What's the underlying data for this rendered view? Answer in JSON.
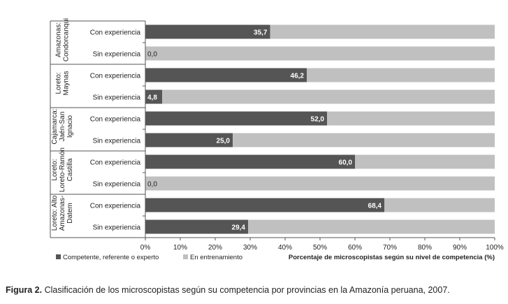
{
  "chart_data": {
    "type": "bar",
    "stacked": true,
    "orientation": "horizontal",
    "groups": [
      {
        "label": "Amazonas: Condorcanqui",
        "label_lines": [
          "Amazonas:",
          "Condorcanqui"
        ]
      },
      {
        "label": "Loreto: Maynas",
        "label_lines": [
          "Loreto:",
          "Maynas"
        ]
      },
      {
        "label": "Cajamarca: Jaén-San Ignacio",
        "label_lines": [
          "Cajamarca:",
          "Jaén-San",
          "Ignacio"
        ]
      },
      {
        "label": "Loreto: Loreto-Ramón Castilla",
        "label_lines": [
          "Loreto:",
          "Loreto-Ramón",
          "Castilla"
        ]
      },
      {
        "label": "Loreto: Alto Amazonas-Datem",
        "label_lines": [
          "Loreto: Alto",
          "Amazonas-",
          "Datem"
        ]
      }
    ],
    "categories": [
      "Con experiencia",
      "Sin experiencia",
      "Con experiencia",
      "Sin experiencia",
      "Con experiencia",
      "Sin experiencia",
      "Con experiencia",
      "Sin experiencia",
      "Con experiencia",
      "Sin experiencia"
    ],
    "series": [
      {
        "name": "Competente, referente o experto",
        "color": "#555555",
        "values": [
          35.7,
          0.0,
          46.2,
          4.8,
          52.0,
          25.0,
          60.0,
          0.0,
          68.4,
          29.4
        ],
        "value_labels": [
          "35,7",
          "0,0",
          "46,2",
          "4,8",
          "52,0",
          "25,0",
          "60,0",
          "0,0",
          "68,4",
          "29,4"
        ]
      },
      {
        "name": "En entrenamiento",
        "color": "#c0c0c0",
        "values": [
          64.3,
          100.0,
          53.8,
          95.2,
          48.0,
          75.0,
          40.0,
          100.0,
          31.6,
          70.6
        ]
      }
    ],
    "xlim": [
      0,
      100
    ],
    "xticks": [
      "0%",
      "10%",
      "20%",
      "30%",
      "40%",
      "50%",
      "60%",
      "70%",
      "80%",
      "90%",
      "100%"
    ],
    "xlabel": "Porcentaje de microscopistas según su nivel de competencia (%)",
    "ylabel": "",
    "legend_position": "bottom-left",
    "grid": false
  },
  "caption": {
    "label": "Figura 2.",
    "text": " Clasificación de los microscopistas según su competencia por provincias en la Amazonía peruana, 2007."
  }
}
